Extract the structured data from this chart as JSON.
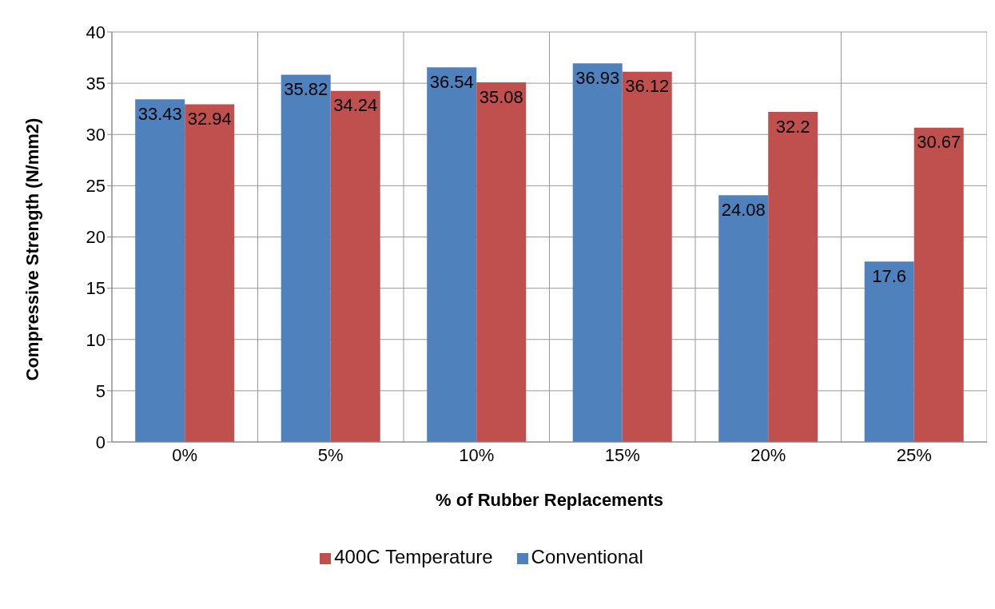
{
  "chart_data": {
    "type": "bar",
    "xlabel": "% of Rubber Replacements",
    "ylabel": "Compressive Strength (N/mm2)",
    "categories": [
      "0%",
      "5%",
      "10%",
      "15%",
      "20%",
      "25%"
    ],
    "series": [
      {
        "name": "Conventional",
        "color": "#4f81bd",
        "values": [
          33.43,
          35.82,
          36.54,
          36.93,
          24.08,
          17.6
        ]
      },
      {
        "name": "400C Temperature",
        "color": "#c0504d",
        "values": [
          32.94,
          34.24,
          35.08,
          36.12,
          32.2,
          30.67
        ]
      }
    ],
    "ylim": [
      0,
      40
    ],
    "yticks": [
      0,
      5,
      10,
      15,
      20,
      25,
      30,
      35,
      40
    ],
    "grid": true,
    "legend": "bottom",
    "data_labels": true
  }
}
